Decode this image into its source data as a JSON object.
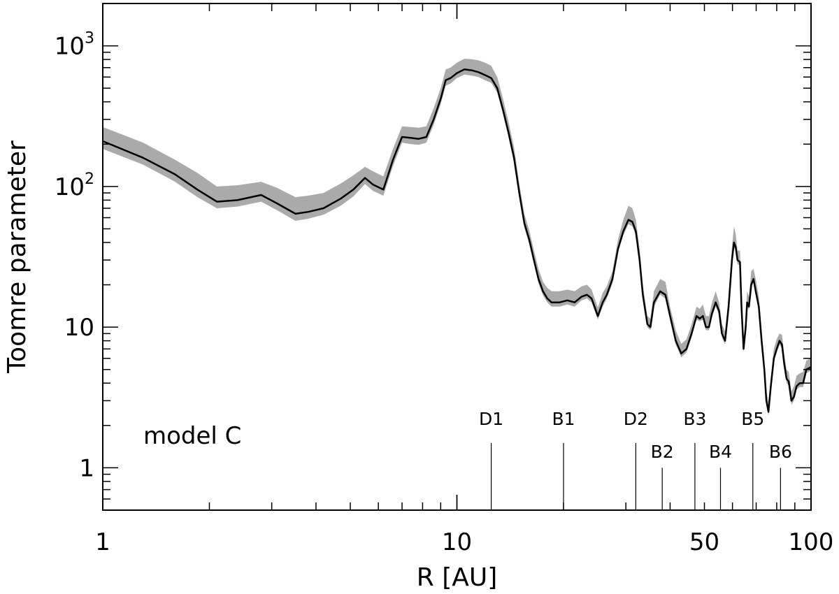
{
  "chart_data": {
    "type": "line",
    "xlabel": "R [AU]",
    "ylabel": "Toomre parameter",
    "xscale": "log",
    "yscale": "log",
    "xlim": [
      1,
      100
    ],
    "ylim": [
      0.5,
      2000
    ],
    "annotation": "model C",
    "x_ticks": [
      {
        "value": 1,
        "label": "1"
      },
      {
        "value": 10,
        "label": "10"
      },
      {
        "value": 50,
        "label": "50"
      },
      {
        "value": 100,
        "label": "100"
      }
    ],
    "y_ticks": [
      {
        "value": 1,
        "base": "1",
        "exp": ""
      },
      {
        "value": 10,
        "base": "10",
        "exp": ""
      },
      {
        "value": 100,
        "base": "10",
        "exp": "2"
      },
      {
        "value": 1000,
        "base": "10",
        "exp": "3"
      }
    ],
    "series": [
      {
        "style": "median line with grey uncertainty band",
        "points": [
          [
            1.0,
            210,
            185,
            265
          ],
          [
            1.3,
            160,
            143,
            205
          ],
          [
            1.6,
            122,
            108,
            155
          ],
          [
            1.85,
            95,
            84,
            125
          ],
          [
            2.1,
            78,
            70,
            100
          ],
          [
            2.4,
            80,
            72,
            102
          ],
          [
            2.8,
            87,
            78,
            108
          ],
          [
            3.1,
            76,
            68,
            98
          ],
          [
            3.5,
            64,
            57,
            84
          ],
          [
            3.8,
            66,
            59,
            86
          ],
          [
            4.2,
            70,
            63,
            90
          ],
          [
            4.7,
            82,
            73,
            105
          ],
          [
            5.1,
            95,
            85,
            120
          ],
          [
            5.5,
            115,
            104,
            138
          ],
          [
            5.8,
            103,
            93,
            128
          ],
          [
            6.2,
            95,
            86,
            118
          ],
          [
            6.6,
            155,
            140,
            185
          ],
          [
            7.0,
            225,
            205,
            268
          ],
          [
            7.4,
            222,
            200,
            265
          ],
          [
            7.8,
            218,
            198,
            262
          ],
          [
            8.2,
            225,
            205,
            268
          ],
          [
            8.6,
            300,
            275,
            360
          ],
          [
            9.0,
            420,
            385,
            500
          ],
          [
            9.3,
            570,
            520,
            680
          ],
          [
            9.6,
            590,
            540,
            700
          ],
          [
            10.0,
            640,
            590,
            760
          ],
          [
            10.5,
            680,
            625,
            810
          ],
          [
            11.0,
            670,
            615,
            805
          ],
          [
            11.5,
            650,
            600,
            790
          ],
          [
            12.0,
            620,
            570,
            760
          ],
          [
            12.5,
            590,
            545,
            720
          ],
          [
            13.0,
            500,
            465,
            600
          ],
          [
            13.5,
            350,
            325,
            420
          ],
          [
            14.0,
            240,
            222,
            285
          ],
          [
            14.5,
            160,
            148,
            190
          ],
          [
            15.0,
            90,
            84,
            105
          ],
          [
            15.5,
            55,
            51,
            64
          ],
          [
            16.0,
            42,
            39,
            49
          ],
          [
            16.5,
            30,
            28,
            35
          ],
          [
            17.0,
            22,
            20.5,
            26
          ],
          [
            17.5,
            18,
            16.8,
            21
          ],
          [
            18.0,
            16,
            15,
            19
          ],
          [
            18.5,
            15,
            14,
            18
          ],
          [
            19.5,
            15,
            14,
            18
          ],
          [
            20.5,
            15.5,
            14.5,
            18.5
          ],
          [
            21.5,
            15,
            14,
            18
          ],
          [
            22.5,
            16.5,
            15.5,
            19.5
          ],
          [
            23.3,
            17,
            16,
            20
          ],
          [
            24.0,
            16,
            15,
            18.5
          ],
          [
            25.0,
            12,
            11.3,
            13.8
          ],
          [
            25.8,
            15,
            14,
            17.5
          ],
          [
            26.5,
            17,
            16,
            19.5
          ],
          [
            27.5,
            22,
            20.5,
            25
          ],
          [
            28.5,
            36,
            34,
            42
          ],
          [
            29.5,
            48,
            45,
            58
          ],
          [
            30.5,
            58,
            54,
            73
          ],
          [
            31.3,
            56,
            52,
            70
          ],
          [
            32.0,
            48,
            45,
            58
          ],
          [
            32.8,
            30,
            28,
            36
          ],
          [
            33.5,
            17,
            16,
            20
          ],
          [
            34.5,
            10.5,
            10,
            12
          ],
          [
            35.2,
            10,
            9.5,
            11.5
          ],
          [
            36.0,
            15,
            14,
            18
          ],
          [
            37.5,
            18,
            17,
            22
          ],
          [
            38.8,
            17,
            16,
            21
          ],
          [
            40.0,
            12,
            11.3,
            14
          ],
          [
            41.5,
            8,
            7.5,
            9.5
          ],
          [
            43.0,
            6.5,
            6.1,
            7.6
          ],
          [
            44.5,
            7,
            6.6,
            8.2
          ],
          [
            46.0,
            9,
            8.5,
            10.5
          ],
          [
            47.5,
            12,
            11.3,
            14
          ],
          [
            48.5,
            11.5,
            11,
            13.5
          ],
          [
            49.5,
            12,
            11.3,
            14.5
          ],
          [
            50.5,
            10,
            9.5,
            12
          ],
          [
            51.5,
            10,
            9.5,
            12
          ],
          [
            52.5,
            12.5,
            11.8,
            15
          ],
          [
            53.8,
            15,
            14,
            18
          ],
          [
            55.0,
            13,
            12.3,
            15
          ],
          [
            56.0,
            9,
            8.5,
            10.5
          ],
          [
            57.2,
            8,
            7.5,
            9.3
          ],
          [
            58.5,
            14,
            13.3,
            16.5
          ],
          [
            59.8,
            30,
            28,
            37
          ],
          [
            60.6,
            40,
            37,
            52
          ],
          [
            61.3,
            37,
            35,
            46
          ],
          [
            62.0,
            30,
            28,
            35
          ],
          [
            63.0,
            29,
            27.5,
            35
          ],
          [
            63.6,
            14,
            13.3,
            16.5
          ],
          [
            64.5,
            7,
            6.6,
            8.2
          ],
          [
            65.4,
            10,
            9.5,
            12
          ],
          [
            66.0,
            15,
            14,
            18
          ],
          [
            66.8,
            14,
            13.3,
            16.5
          ],
          [
            67.8,
            20,
            19,
            25
          ],
          [
            68.8,
            22,
            21,
            26
          ],
          [
            69.8,
            18,
            17,
            22
          ],
          [
            71.2,
            14,
            13.3,
            16.5
          ],
          [
            72.5,
            8,
            7.5,
            9.5
          ],
          [
            73.8,
            5,
            4.7,
            5.8
          ],
          [
            74.8,
            3,
            2.8,
            3.5
          ],
          [
            75.8,
            2.5,
            2.35,
            2.9
          ],
          [
            77.0,
            3.8,
            3.6,
            4.4
          ],
          [
            78.5,
            6,
            5.6,
            7
          ],
          [
            80.0,
            7,
            6.6,
            8.2
          ],
          [
            81.5,
            8,
            7.5,
            9
          ],
          [
            82.8,
            7.5,
            7,
            8.8
          ],
          [
            84.0,
            5.5,
            5.2,
            6.4
          ],
          [
            85.3,
            4.3,
            4,
            5
          ],
          [
            86.5,
            4.1,
            3.85,
            4.8
          ],
          [
            88.0,
            3,
            2.8,
            3.5
          ],
          [
            89.5,
            3.2,
            3,
            3.8
          ],
          [
            91.0,
            3.8,
            3.6,
            4.5
          ],
          [
            93.0,
            4,
            3.75,
            4.7
          ],
          [
            95.0,
            4,
            3.75,
            4.8
          ],
          [
            97.0,
            5,
            4.7,
            5.8
          ],
          [
            100.0,
            5.2,
            4.9,
            6
          ]
        ]
      }
    ],
    "ring_markers": [
      {
        "label": "D1",
        "r": 12.5,
        "height": 1.5,
        "label_row": "upper"
      },
      {
        "label": "B1",
        "r": 20.0,
        "height": 1.5,
        "label_row": "upper"
      },
      {
        "label": "D2",
        "r": 32.0,
        "height": 1.5,
        "label_row": "upper"
      },
      {
        "label": "B2",
        "r": 38.0,
        "height": 1.0,
        "label_row": "lower"
      },
      {
        "label": "B3",
        "r": 47.0,
        "height": 1.5,
        "label_row": "upper"
      },
      {
        "label": "B4",
        "r": 55.5,
        "height": 1.0,
        "label_row": "lower"
      },
      {
        "label": "B5",
        "r": 68.5,
        "height": 1.5,
        "label_row": "upper"
      },
      {
        "label": "B6",
        "r": 82.0,
        "height": 1.0,
        "label_row": "lower"
      }
    ],
    "colors": {
      "line": "#000000",
      "band": "#aaaaaa",
      "frame": "#000000"
    },
    "grid": false,
    "legend": "none"
  }
}
